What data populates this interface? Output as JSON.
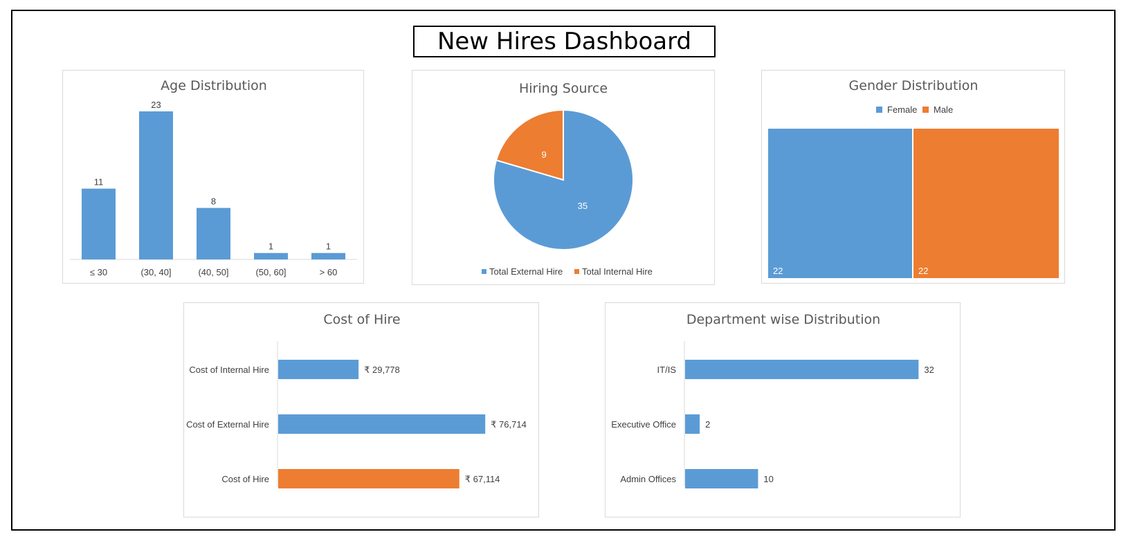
{
  "dashboard_title": "New Hires Dashboard",
  "colors": {
    "blue": "#5b9bd5",
    "orange": "#ed7d31",
    "axis": "#d9d9d9",
    "text": "#404040",
    "title": "#595959"
  },
  "chart_data": [
    {
      "id": "age",
      "type": "bar",
      "title": "Age Distribution",
      "categories": [
        "≤ 30",
        "(30, 40]",
        "(40, 50]",
        "(50, 60]",
        "> 60"
      ],
      "values": [
        11,
        23,
        8,
        1,
        1
      ],
      "data_labels": [
        "11",
        "23",
        "8",
        "1",
        "1"
      ],
      "ylim": [
        0,
        23
      ]
    },
    {
      "id": "source",
      "type": "pie",
      "title": "Hiring Source",
      "categories": [
        "Total External Hire",
        "Total Internal Hire"
      ],
      "values": [
        35,
        9
      ],
      "data_labels": [
        "35",
        "9"
      ],
      "legend": "bottom"
    },
    {
      "id": "gender",
      "type": "bar",
      "title": "Gender Distribution",
      "categories": [
        "Female",
        "Male"
      ],
      "values": [
        22,
        22
      ],
      "data_labels": [
        "22",
        "22"
      ],
      "legend": "top"
    },
    {
      "id": "cost",
      "type": "bar",
      "orientation": "horizontal",
      "title": "Cost of Hire",
      "categories": [
        "Cost of Internal Hire",
        "Cost of External Hire",
        "Cost of Hire"
      ],
      "values": [
        29778,
        76714,
        67114
      ],
      "data_labels": [
        "₹ 29,778",
        "₹ 76,714",
        "₹ 67,114"
      ],
      "xlim": [
        0,
        80000
      ]
    },
    {
      "id": "dept",
      "type": "bar",
      "orientation": "horizontal",
      "title": "Department wise Distribution",
      "categories": [
        "IT/IS",
        "Executive Office",
        "Admin Offices"
      ],
      "values": [
        32,
        2,
        10
      ],
      "data_labels": [
        "32",
        "2",
        "10"
      ],
      "xlim": [
        0,
        35
      ]
    }
  ]
}
